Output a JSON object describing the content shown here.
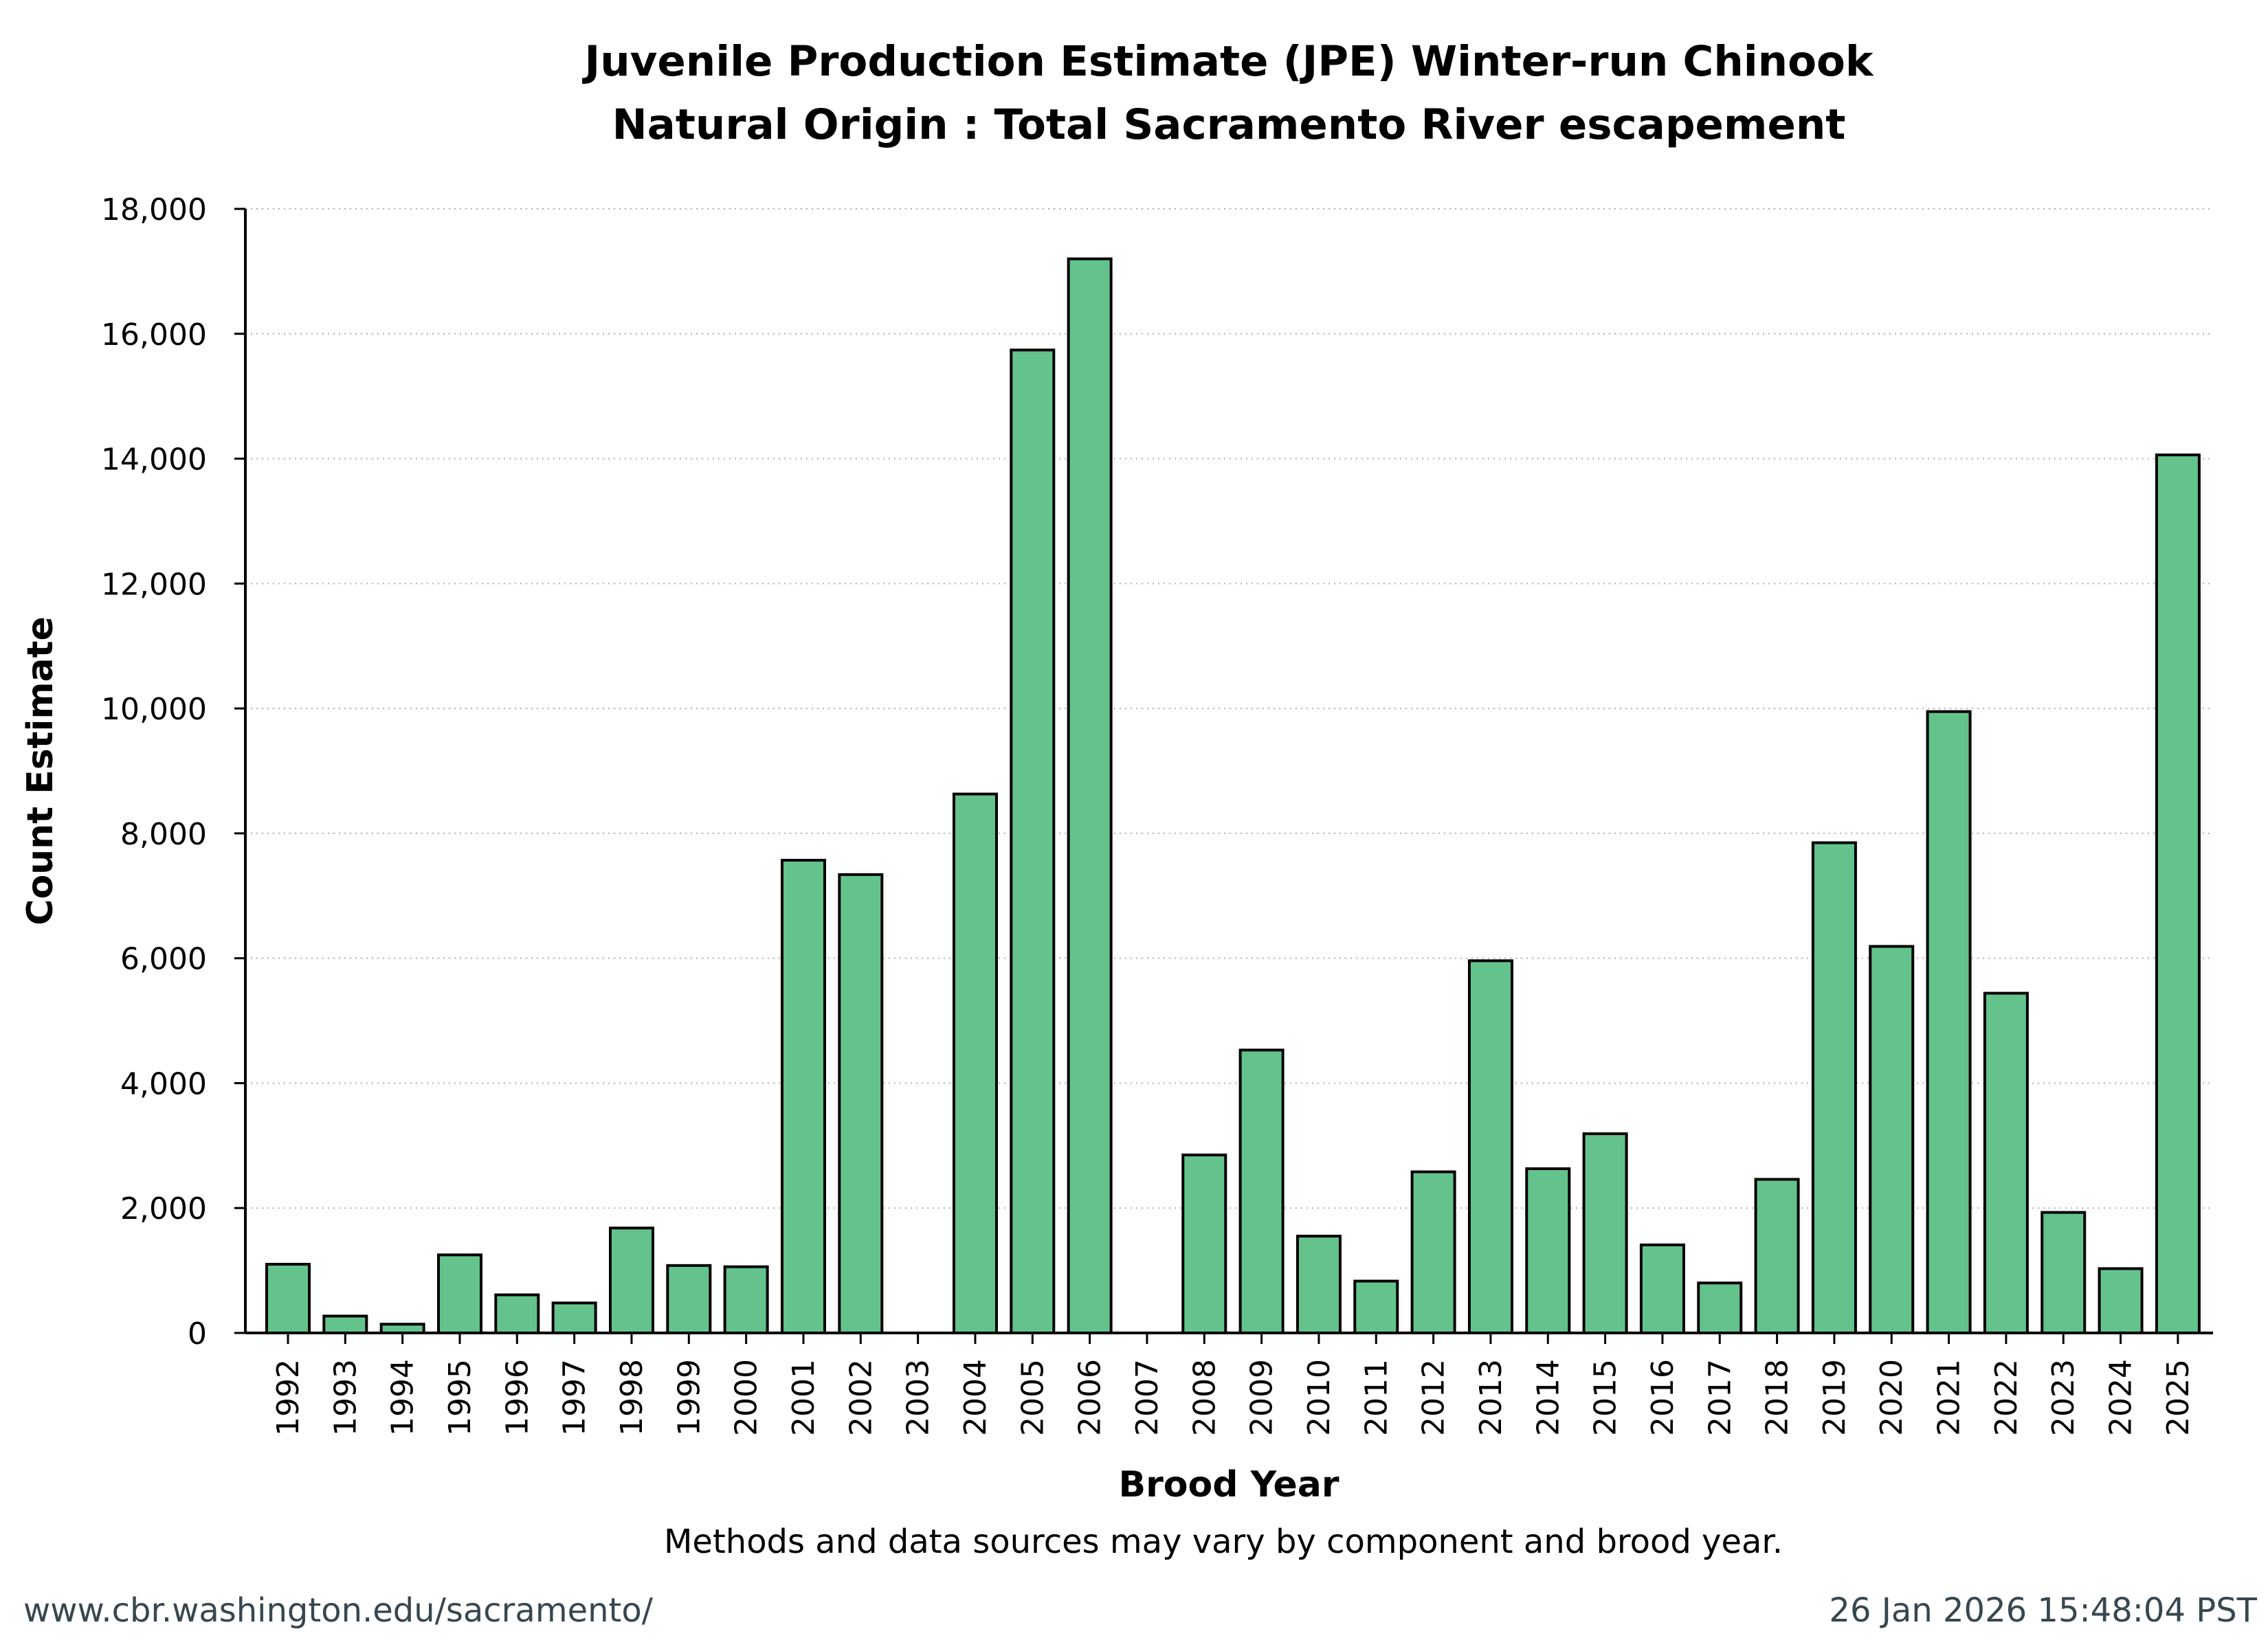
{
  "chart_data": {
    "type": "bar",
    "title": [
      "Juvenile Production Estimate (JPE) Winter-run Chinook",
      "Natural Origin : Total Sacramento River escapement"
    ],
    "xlabel": "Brood Year",
    "ylabel": "Count Estimate",
    "ylim": [
      0,
      18000
    ],
    "yticks": [
      0,
      2000,
      4000,
      6000,
      8000,
      10000,
      12000,
      14000,
      16000,
      18000
    ],
    "ytick_labels": [
      "0",
      "2,000",
      "4,000",
      "6,000",
      "8,000",
      "10,000",
      "12,000",
      "14,000",
      "16,000",
      "18,000"
    ],
    "grid": "horizontal dotted",
    "bar_color": "#64c38c",
    "categories": [
      "1992",
      "1993",
      "1994",
      "1995",
      "1996",
      "1997",
      "1998",
      "1999",
      "2000",
      "2001",
      "2002",
      "2003",
      "2004",
      "2005",
      "2006",
      "2007",
      "2008",
      "2009",
      "2010",
      "2011",
      "2012",
      "2013",
      "2014",
      "2015",
      "2016",
      "2017",
      "2018",
      "2019",
      "2020",
      "2021",
      "2022",
      "2023",
      "2024",
      "2025"
    ],
    "values": [
      1100,
      270,
      140,
      1250,
      610,
      480,
      1680,
      1080,
      1060,
      7570,
      7340,
      null,
      8630,
      15740,
      17200,
      null,
      2850,
      4530,
      1550,
      830,
      2580,
      5960,
      2630,
      3190,
      1410,
      800,
      2460,
      7850,
      6190,
      9950,
      5440,
      1930,
      1030,
      14060
    ]
  },
  "note": "Methods and data sources may vary by component and brood year.",
  "footer": {
    "url": "www.cbr.washington.edu/sacramento/",
    "timestamp": "26 Jan 2026 15:48:04 PST"
  }
}
